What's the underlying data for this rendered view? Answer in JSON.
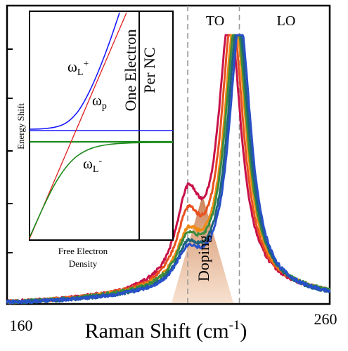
{
  "chart_data": {
    "type": "line",
    "xlabel_main": "Raman Shift (cm",
    "xlabel_sup": "-1",
    "xlabel_close": ")",
    "xlim": [
      160,
      260
    ],
    "x_ticks": [
      "160",
      "260"
    ],
    "markers": [
      {
        "label": "TO",
        "x": 216
      },
      {
        "label": "LO",
        "x": 232
      }
    ],
    "doping_label": "Doping",
    "series": [
      {
        "color": "#c8124a",
        "peak_x": 229.0,
        "shoulder": 0.55,
        "base": 0.05
      },
      {
        "color": "#e8501e",
        "peak_x": 229.8,
        "shoulder": 0.42,
        "base": 0.05
      },
      {
        "color": "#f08c14",
        "peak_x": 230.6,
        "shoulder": 0.3,
        "base": 0.05
      },
      {
        "color": "#3c8c3c",
        "peak_x": 231.0,
        "shoulder": 0.27,
        "base": 0.05
      },
      {
        "color": "#1e6478",
        "peak_x": 231.6,
        "shoulder": 0.24,
        "base": 0.04
      },
      {
        "color": "#2850c8",
        "peak_x": 232.2,
        "shoulder": 0.22,
        "base": 0.04
      }
    ],
    "inset": {
      "xlabel_line1": "Free Electron",
      "xlabel_line2": "Density",
      "ylabel": "Energy Shift",
      "vline_label_line1": "One Electron",
      "vline_label_line2": "Per NC",
      "curve_labels": [
        {
          "base": "ω",
          "sub": "L",
          "sup": "+",
          "color": "#1a1aff"
        },
        {
          "base": "ω",
          "sub": "p",
          "sup": "",
          "color": "#e02020"
        },
        {
          "base": "ω",
          "sub": "L",
          "sup": "-",
          "color": "#1a8a1a"
        }
      ]
    }
  }
}
